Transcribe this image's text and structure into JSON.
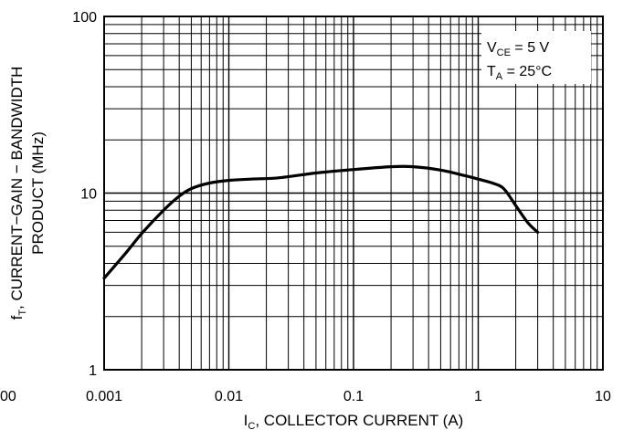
{
  "chart_data": {
    "type": "line",
    "x_scale": "log",
    "y_scale": "log",
    "xlim": [
      0.001,
      10
    ],
    "ylim": [
      1,
      100
    ],
    "x_ticks": [
      {
        "value": 0.001,
        "label": "0.001"
      },
      {
        "value": 0.01,
        "label": "0.01"
      },
      {
        "value": 0.1,
        "label": "0.1"
      },
      {
        "value": 1,
        "label": "1"
      },
      {
        "value": 10,
        "label": "10"
      }
    ],
    "x_tick_cut_label": "00",
    "y_ticks": [
      {
        "value": 1,
        "label": "1"
      },
      {
        "value": 10,
        "label": "10"
      },
      {
        "value": 100,
        "label": "100"
      }
    ],
    "xlabel": {
      "main": "I",
      "sub": "C",
      "rest": ", COLLECTOR CURRENT (A)"
    },
    "ylabel_line1": {
      "main": "f",
      "sub": "T",
      "rest": ", CURRENT−GAIN − BANDWIDTH"
    },
    "ylabel_line2": "PRODUCT (MHz)",
    "annotation": [
      {
        "main": "V",
        "sub": "CE",
        "rest": " = 5 V"
      },
      {
        "main": "T",
        "sub": "A",
        "rest": " = 25°C"
      }
    ],
    "grid": true,
    "series": [
      {
        "color": "#000000",
        "x": [
          0.001,
          0.0015,
          0.002,
          0.003,
          0.004,
          0.005,
          0.007,
          0.01,
          0.015,
          0.025,
          0.05,
          0.1,
          0.2,
          0.3,
          0.5,
          0.8,
          1.0,
          1.3,
          1.6,
          2.0,
          2.5,
          3.0
        ],
        "y": [
          3.3,
          4.6,
          5.9,
          8.0,
          9.6,
          10.6,
          11.4,
          11.8,
          12.0,
          12.2,
          13.0,
          13.6,
          14.1,
          14.1,
          13.5,
          12.5,
          12.0,
          11.4,
          10.6,
          8.5,
          6.8,
          6.0
        ]
      }
    ]
  }
}
